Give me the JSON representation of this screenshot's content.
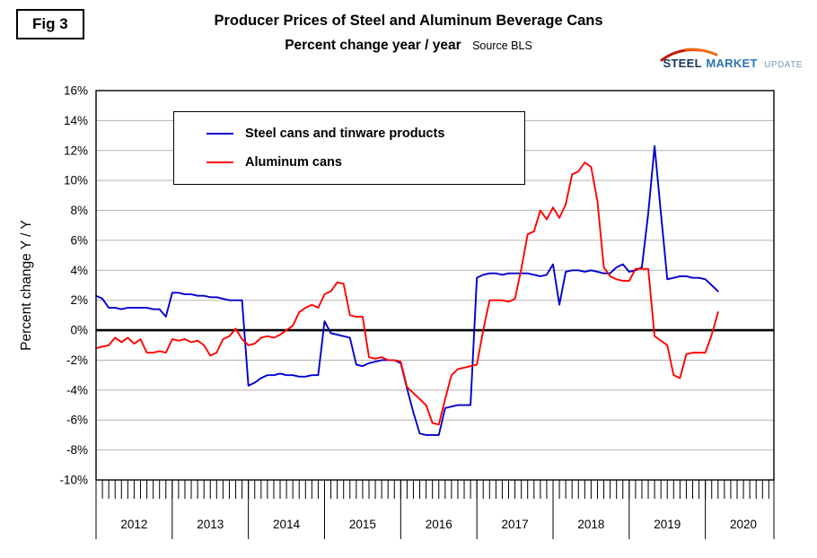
{
  "fig_label": "Fig 3",
  "title": "Producer Prices of Steel and Aluminum Beverage Cans",
  "subtitle": "Percent change year / year",
  "source": "Source BLS",
  "y_axis_title": "Percent change Y / Y",
  "logo": {
    "word1": "STEEL",
    "word2": "MARKET",
    "word3": "UPDATE",
    "swoosh_color": "#d63a10"
  },
  "colors": {
    "steel_line": "#0000cd",
    "aluminum_line": "#ff0000",
    "gridline": "#b3b3b3",
    "zero_line": "#000000"
  },
  "chart_data": {
    "type": "line",
    "x_start_year": 2012,
    "x_step_months": 1,
    "x_axis_end": 2020.9,
    "ylim": [
      -10,
      16
    ],
    "y_tick_step": 2,
    "y_tick_labels": [
      "16%",
      "14%",
      "12%",
      "10%",
      "8%",
      "6%",
      "4%",
      "2%",
      "0%",
      "-2%",
      "-4%",
      "-6%",
      "-8%",
      "-10%"
    ],
    "year_labels": [
      "2012",
      "2013",
      "2014",
      "2015",
      "2016",
      "2017",
      "2018",
      "2019",
      "2020"
    ],
    "grid": true,
    "zero_line": true,
    "legend_position": "top-left-inside",
    "series": [
      {
        "name": "Steel cans and tinware products",
        "color": "#0000cd",
        "values": [
          2.3,
          2.1,
          1.5,
          1.5,
          1.4,
          1.5,
          1.5,
          1.5,
          1.5,
          1.4,
          1.4,
          0.9,
          2.5,
          2.5,
          2.4,
          2.4,
          2.3,
          2.3,
          2.2,
          2.2,
          2.1,
          2.0,
          2.0,
          2.0,
          -3.7,
          -3.5,
          -3.2,
          -3.0,
          -3.0,
          -2.9,
          -3.0,
          -3.0,
          -3.1,
          -3.1,
          -3.0,
          -3.0,
          0.6,
          -0.2,
          -0.3,
          -0.4,
          -0.5,
          -2.3,
          -2.4,
          -2.2,
          -2.1,
          -2.0,
          -2.0,
          -2.0,
          -2.2,
          -3.9,
          -5.5,
          -6.9,
          -7.0,
          -7.0,
          -7.0,
          -5.2,
          -5.1,
          -5.0,
          -5.0,
          -5.0,
          3.5,
          3.7,
          3.8,
          3.8,
          3.7,
          3.8,
          3.8,
          3.8,
          3.8,
          3.7,
          3.6,
          3.7,
          4.4,
          1.7,
          3.9,
          4.0,
          4.0,
          3.9,
          4.0,
          3.9,
          3.8,
          3.8,
          4.2,
          4.4,
          3.9,
          4.0,
          4.2,
          7.8,
          12.3,
          7.8,
          3.4,
          3.5,
          3.6,
          3.6,
          3.5,
          3.5,
          3.4,
          3.0,
          2.6
        ]
      },
      {
        "name": "Aluminum cans",
        "color": "#ff0000",
        "values": [
          -1.2,
          -1.1,
          -1.0,
          -0.5,
          -0.8,
          -0.5,
          -0.9,
          -0.6,
          -1.5,
          -1.5,
          -1.4,
          -1.5,
          -0.6,
          -0.7,
          -0.6,
          -0.8,
          -0.7,
          -1.0,
          -1.7,
          -1.5,
          -0.6,
          -0.4,
          0.1,
          -0.6,
          -1.0,
          -0.9,
          -0.5,
          -0.4,
          -0.5,
          -0.3,
          0.0,
          0.3,
          1.2,
          1.5,
          1.7,
          1.5,
          2.4,
          2.6,
          3.2,
          3.1,
          1.0,
          0.9,
          0.9,
          -1.8,
          -1.9,
          -1.8,
          -2.0,
          -2.0,
          -2.1,
          -3.8,
          -4.2,
          -4.6,
          -5.0,
          -6.2,
          -6.3,
          -4.6,
          -3.0,
          -2.6,
          -2.5,
          -2.4,
          -2.3,
          0.0,
          2.0,
          2.0,
          2.0,
          1.9,
          2.1,
          4.1,
          6.4,
          6.6,
          8.0,
          7.4,
          8.2,
          7.5,
          8.4,
          10.4,
          10.6,
          11.2,
          10.9,
          8.6,
          4.2,
          3.6,
          3.4,
          3.3,
          3.3,
          4.1,
          4.1,
          4.1,
          -0.4,
          -0.7,
          -1.0,
          -3.0,
          -3.2,
          -1.6,
          -1.5,
          -1.5,
          -1.5,
          -0.3,
          1.2
        ]
      }
    ]
  }
}
